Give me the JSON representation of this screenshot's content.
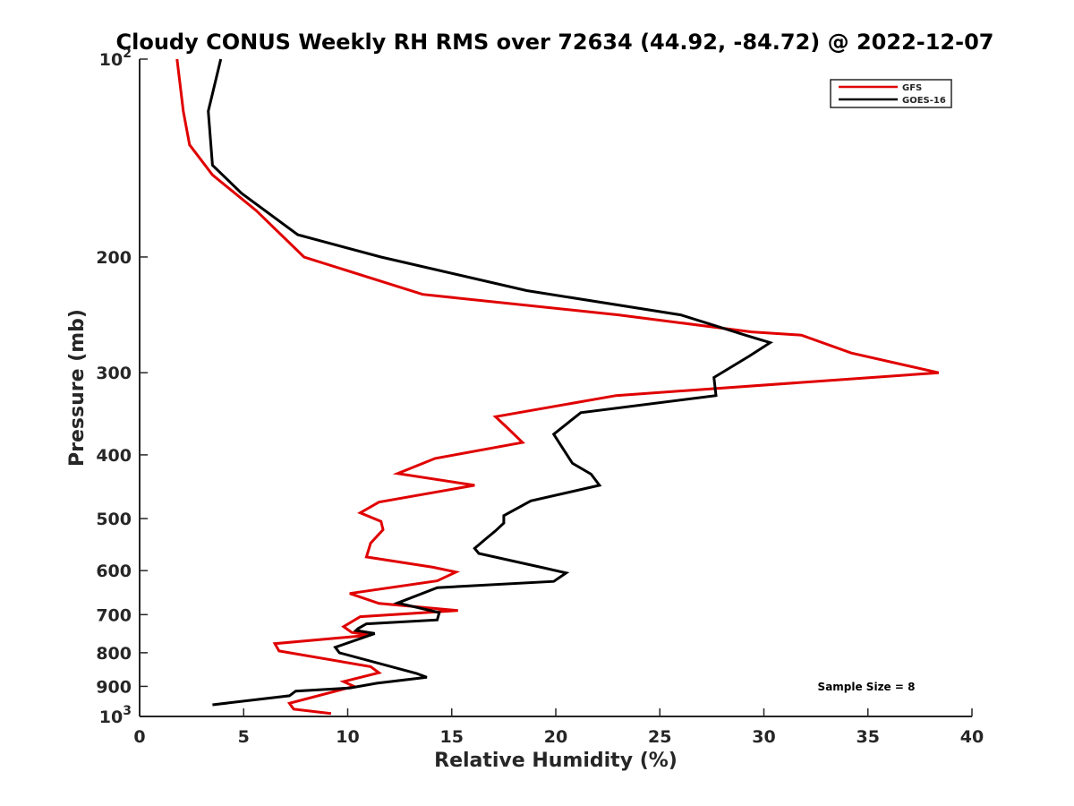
{
  "chart_data": {
    "type": "line",
    "title": "Cloudy CONUS Weekly RH RMS over 72634 (44.92, -84.72) @ 2022-12-07",
    "xlabel": "Relative Humidity (%)",
    "ylabel": "Pressure (mb)",
    "xlim": [
      0,
      40
    ],
    "ylim": [
      100,
      1000
    ],
    "y_scale": "log",
    "y_reversed": true,
    "grid": false,
    "legend_position": "top-right",
    "x_ticks": [
      "0",
      "5",
      "10",
      "15",
      "20",
      "25",
      "30",
      "35",
      "40"
    ],
    "y_ticks": [
      {
        "value": 100,
        "base": "10",
        "exp": "2"
      },
      {
        "value": 200,
        "label": "200"
      },
      {
        "value": 300,
        "label": "300"
      },
      {
        "value": 400,
        "label": "400"
      },
      {
        "value": 500,
        "label": "500"
      },
      {
        "value": 600,
        "label": "600"
      },
      {
        "value": 700,
        "label": "700"
      },
      {
        "value": 800,
        "label": "800"
      },
      {
        "value": 900,
        "label": "900"
      },
      {
        "value": 1000,
        "base": "10",
        "exp": "3"
      }
    ],
    "annotation": "Sample Size = 8",
    "series": [
      {
        "name": "GFS",
        "color": "#e00000",
        "points": [
          [
            1.8,
            100
          ],
          [
            2.1,
            120
          ],
          [
            2.4,
            135
          ],
          [
            3.5,
            150
          ],
          [
            5.6,
            170
          ],
          [
            7.9,
            200
          ],
          [
            13.6,
            228
          ],
          [
            23.0,
            245
          ],
          [
            29.4,
            260
          ],
          [
            31.8,
            263
          ],
          [
            34.2,
            280
          ],
          [
            38.4,
            300
          ],
          [
            22.9,
            325
          ],
          [
            17.1,
            350
          ],
          [
            17.6,
            362
          ],
          [
            18.4,
            383
          ],
          [
            14.2,
            405
          ],
          [
            12.4,
            427
          ],
          [
            16.1,
            445
          ],
          [
            11.5,
            472
          ],
          [
            10.6,
            490
          ],
          [
            11.6,
            505
          ],
          [
            11.7,
            520
          ],
          [
            11.1,
            545
          ],
          [
            10.9,
            572
          ],
          [
            14.1,
            593
          ],
          [
            15.2,
            603
          ],
          [
            14.3,
            622
          ],
          [
            10.1,
            650
          ],
          [
            11.5,
            673
          ],
          [
            15.3,
            690
          ],
          [
            10.6,
            705
          ],
          [
            9.8,
            730
          ],
          [
            10.2,
            745
          ],
          [
            11.1,
            752
          ],
          [
            6.5,
            775
          ],
          [
            6.7,
            795
          ],
          [
            11.1,
            840
          ],
          [
            11.5,
            858
          ],
          [
            9.8,
            885
          ],
          [
            10.3,
            900
          ],
          [
            7.2,
            955
          ],
          [
            7.4,
            975
          ],
          [
            9.2,
            990
          ]
        ]
      },
      {
        "name": "GOES-16",
        "color": "#000000",
        "points": [
          [
            3.9,
            100
          ],
          [
            3.3,
            120
          ],
          [
            3.5,
            145
          ],
          [
            4.9,
            160
          ],
          [
            7.6,
            185
          ],
          [
            11.6,
            200
          ],
          [
            18.6,
            225
          ],
          [
            26.0,
            245
          ],
          [
            29.1,
            263
          ],
          [
            30.3,
            270
          ],
          [
            29.3,
            283
          ],
          [
            27.6,
            305
          ],
          [
            27.7,
            325
          ],
          [
            21.2,
            345
          ],
          [
            19.9,
            372
          ],
          [
            20.2,
            385
          ],
          [
            20.8,
            412
          ],
          [
            21.7,
            428
          ],
          [
            22.1,
            445
          ],
          [
            18.8,
            470
          ],
          [
            17.5,
            495
          ],
          [
            17.5,
            508
          ],
          [
            17.1,
            522
          ],
          [
            16.6,
            538
          ],
          [
            16.1,
            555
          ],
          [
            16.3,
            565
          ],
          [
            19.5,
            595
          ],
          [
            20.5,
            605
          ],
          [
            19.9,
            623
          ],
          [
            14.3,
            637
          ],
          [
            12.4,
            672
          ],
          [
            14.4,
            695
          ],
          [
            14.3,
            713
          ],
          [
            10.9,
            723
          ],
          [
            10.5,
            735
          ],
          [
            10.4,
            740
          ],
          [
            11.3,
            748
          ],
          [
            9.4,
            785
          ],
          [
            9.6,
            800
          ],
          [
            13.3,
            860
          ],
          [
            13.8,
            872
          ],
          [
            11.4,
            890
          ],
          [
            10.1,
            905
          ],
          [
            7.5,
            915
          ],
          [
            7.2,
            930
          ],
          [
            3.5,
            960
          ]
        ]
      }
    ]
  }
}
